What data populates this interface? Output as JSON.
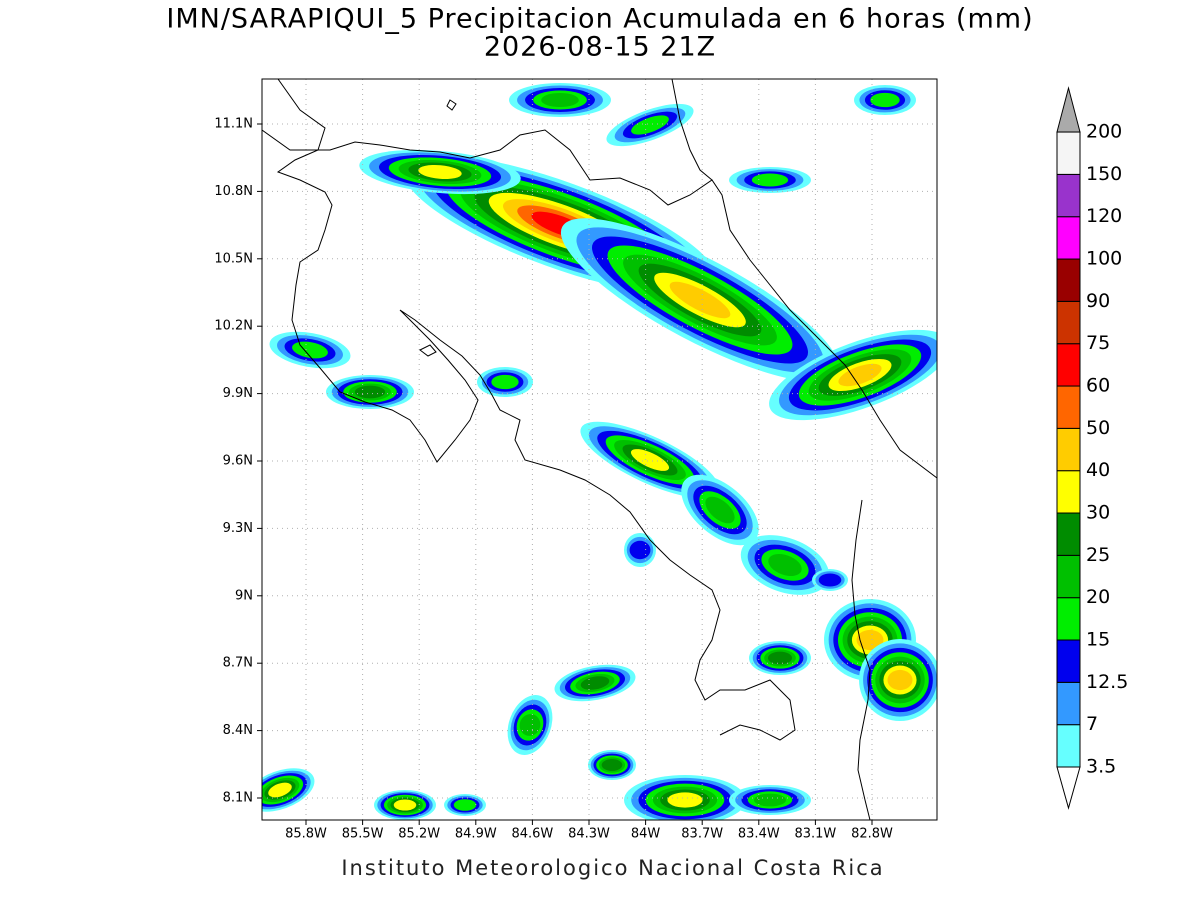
{
  "title": "IMN/SARAPIQUI_5 Precipitacion Acumulada en 6 horas (mm)",
  "subtitle": "2026-08-15 21Z",
  "lat_labels": [
    "11.1N",
    "10.8N",
    "10.5N",
    "10.2N",
    "9.9N",
    "9.6N",
    "9.3N",
    "9N",
    "8.7N",
    "8.4N",
    "8.1N"
  ],
  "lon_labels": [
    "85.8W",
    "85.5W",
    "85.2W",
    "84.9W",
    "84.6W",
    "84.3W",
    "84W",
    "83.7W",
    "83.4W",
    "83.1W",
    "82.8W"
  ],
  "colorbar": {
    "labels": [
      "3.5",
      "7",
      "12.5",
      "15",
      "20",
      "25",
      "30",
      "40",
      "50",
      "60",
      "75",
      "90",
      "100",
      "120",
      "150",
      "200"
    ],
    "colors": [
      "#66ffff",
      "#3399ff",
      "#0000ee",
      "#00ee00",
      "#00c000",
      "#008c00",
      "#ffff00",
      "#ffcc00",
      "#ff6600",
      "#ff0000",
      "#cc3300",
      "#990000",
      "#ff00ff",
      "#9933cc",
      "#f5f5f5"
    ],
    "over_color": "#aaaaaa",
    "under_color": "#ffffff"
  },
  "footer": "Instituto Meteorologico Nacional Costa Rica"
}
